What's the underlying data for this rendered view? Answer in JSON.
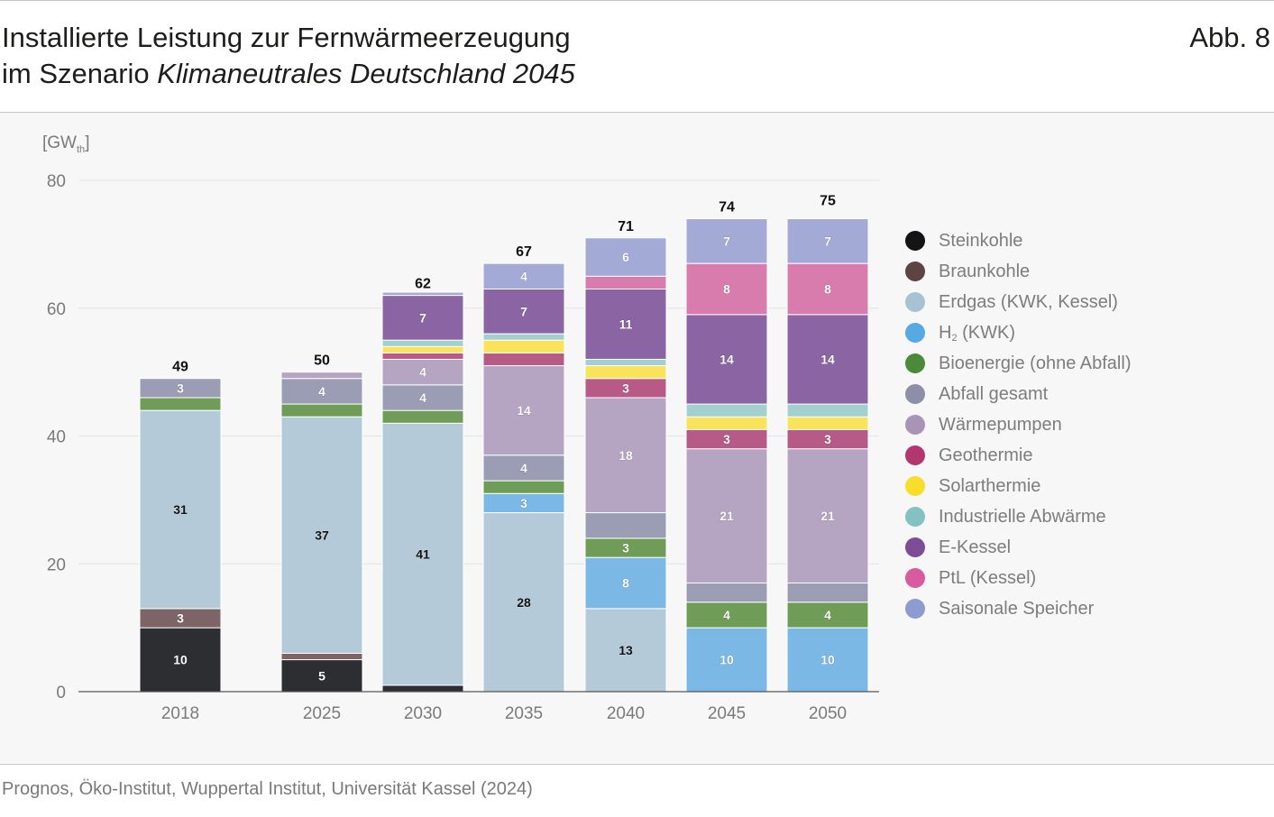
{
  "header": {
    "title_line1": "Installierte Leistung zur Fernwärmeerzeugung",
    "title_line2_prefix": "im Szenario ",
    "title_line2_italic": "Klimaneutrales Deutschland 2045",
    "figure_label": "Abb. 8"
  },
  "source": "Prognos, Öko-Institut, Wuppertal Institut, Universität Kassel (2024)",
  "colors": {
    "grid": "#e4e4e4",
    "axis": "#555555",
    "tick_text": "#7a7a7a",
    "total_text": "#111111"
  },
  "chart_data": {
    "type": "bar",
    "stacked": true,
    "title": "Installierte Leistung zur Fernwärmeerzeugung im Szenario Klimaneutrales Deutschland 2045",
    "ylabel": "GW",
    "ylabel_sub": "th",
    "ylim": [
      0,
      80
    ],
    "yticks": [
      0,
      20,
      40,
      60,
      80
    ],
    "grid": true,
    "legend_position": "right",
    "categories": [
      "2018",
      "2025",
      "2030",
      "2035",
      "2040",
      "2045",
      "2050"
    ],
    "totals": [
      49,
      50,
      62,
      67,
      71,
      74,
      75
    ],
    "series": [
      {
        "name": "Steinkohle",
        "legend_color": "#141416",
        "bar_color": "#2d2e32",
        "label_color": "#ffffff",
        "values": [
          10,
          5,
          1,
          0,
          0,
          0,
          0
        ],
        "labels": [
          "10",
          "5",
          "",
          "",
          "",
          "",
          ""
        ]
      },
      {
        "name": "Braunkohle",
        "legend_color": "#5c4445",
        "bar_color": "#7d6466",
        "label_color": "#ffffff",
        "values": [
          3,
          1,
          0,
          0,
          0,
          0,
          0
        ],
        "labels": [
          "3",
          "",
          "",
          "",
          "",
          "",
          ""
        ]
      },
      {
        "name": "Erdgas (KWK, Kessel)",
        "legend_color": "#a7c2d3",
        "bar_color": "#b4cad8",
        "label_color": "#111111",
        "values": [
          31,
          37,
          41,
          28,
          13,
          0,
          0
        ],
        "labels": [
          "31",
          "37",
          "41",
          "28",
          "13",
          "",
          ""
        ]
      },
      {
        "name": "H",
        "name_sub": "2",
        "name_suffix": " (KWK)",
        "legend_color": "#56a9e2",
        "bar_color": "#7cb8e6",
        "label_color": "#ffffff",
        "values": [
          0,
          0,
          0,
          3,
          8,
          10,
          10
        ],
        "labels": [
          "",
          "",
          "",
          "3",
          "8",
          "10",
          "10"
        ]
      },
      {
        "name": "Bioenergie (ohne Abfall)",
        "legend_color": "#4a8a38",
        "bar_color": "#6f9d57",
        "label_color": "#ffffff",
        "values": [
          2,
          2,
          2,
          2,
          3,
          4,
          4
        ],
        "labels": [
          "",
          "",
          "",
          "",
          "3",
          "4",
          "4"
        ]
      },
      {
        "name": "Abfall gesamt",
        "legend_color": "#8d8fa9",
        "bar_color": "#9a9db3",
        "label_color": "#ffffff",
        "values": [
          3,
          4,
          4,
          4,
          4,
          3,
          3
        ],
        "labels": [
          "3",
          "4",
          "4",
          "4",
          "",
          "",
          ""
        ]
      },
      {
        "name": "Wärmepumpen",
        "legend_color": "#a994b8",
        "bar_color": "#b5a5c3",
        "label_color": "#ffffff",
        "values": [
          0,
          1,
          4,
          14,
          18,
          21,
          21
        ],
        "labels": [
          "",
          "",
          "4",
          "14",
          "18",
          "21",
          "21"
        ]
      },
      {
        "name": "Geothermie",
        "legend_color": "#b2366f",
        "bar_color": "#b85a87",
        "label_color": "#ffffff",
        "values": [
          0,
          0,
          1,
          2,
          3,
          3,
          3
        ],
        "labels": [
          "",
          "",
          "",
          "",
          "3",
          "3",
          "3"
        ]
      },
      {
        "name": "Solarthermie",
        "legend_color": "#f8dd2b",
        "bar_color": "#f8e35a",
        "label_color": "#111111",
        "values": [
          0,
          0,
          1,
          2,
          2,
          2,
          2
        ],
        "labels": [
          "",
          "",
          "",
          "",
          "",
          "",
          ""
        ]
      },
      {
        "name": "Industrielle Abwärme",
        "legend_color": "#83c2c1",
        "bar_color": "#a1d0cf",
        "label_color": "#111111",
        "values": [
          0,
          0,
          1,
          1,
          1,
          2,
          2
        ],
        "labels": [
          "",
          "",
          "",
          "",
          "",
          "",
          ""
        ]
      },
      {
        "name": "E-Kessel",
        "legend_color": "#7c4c96",
        "bar_color": "#8a64a3",
        "label_color": "#ffffff",
        "values": [
          0,
          0,
          7,
          7,
          11,
          14,
          14
        ],
        "labels": [
          "",
          "",
          "7",
          "7",
          "11",
          "14",
          "14"
        ]
      },
      {
        "name": "PtL (Kessel)",
        "legend_color": "#d85b9f",
        "bar_color": "#d87cae",
        "label_color": "#ffffff",
        "values": [
          0,
          0,
          0,
          0,
          2,
          8,
          8
        ],
        "labels": [
          "",
          "",
          "",
          "",
          "",
          "8",
          "8"
        ]
      },
      {
        "name": "Saisonale Speicher",
        "legend_color": "#8c9bd0",
        "bar_color": "#a3aad6",
        "label_color": "#ffffff",
        "values": [
          0,
          0,
          0.5,
          4,
          6,
          7,
          7
        ],
        "labels": [
          "",
          "",
          "",
          "4",
          "6",
          "7",
          "7"
        ]
      }
    ]
  }
}
